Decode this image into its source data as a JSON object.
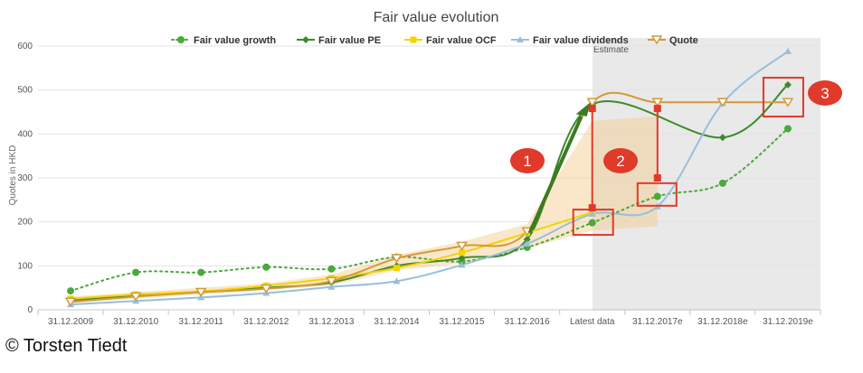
{
  "chart_data": {
    "type": "line",
    "title": "Fair value evolution",
    "ylabel": "Quotes in HKD",
    "xlabel": "",
    "ylim": [
      0,
      600
    ],
    "yticks": [
      0,
      100,
      200,
      300,
      400,
      500,
      600
    ],
    "categories": [
      "31.12.2009",
      "31.12.2010",
      "31.12.2011",
      "31.12.2012",
      "31.12.2013",
      "31.12.2014",
      "31.12.2015",
      "31.12.2016",
      "Latest data",
      "31.12.2017e",
      "31.12.2018e",
      "31.12.2019e"
    ],
    "estimate_label": "Estimate",
    "series": [
      {
        "name": "Fair value growth",
        "color": "#4aa83c",
        "style": "dotted",
        "marker": "circle",
        "values": [
          43,
          85,
          85,
          97,
          93,
          120,
          110,
          142,
          198,
          258,
          288,
          412
        ]
      },
      {
        "name": "Fair value PE",
        "color": "#3d8a2a",
        "style": "solid",
        "marker": "diamond",
        "values": [
          22,
          32,
          40,
          50,
          62,
          100,
          118,
          160,
          467,
          null,
          392,
          512
        ]
      },
      {
        "name": "Fair value OCF",
        "color": "#f2d400",
        "style": "solid",
        "marker": "square",
        "values": [
          25,
          35,
          42,
          55,
          72,
          95,
          130,
          175,
          222,
          null,
          null,
          null
        ]
      },
      {
        "name": "Fair value dividends",
        "color": "#98bedc",
        "style": "solid",
        "marker": "triangle",
        "values": [
          12,
          20,
          28,
          38,
          52,
          65,
          102,
          150,
          218,
          235,
          470,
          588
        ]
      },
      {
        "name": "Quote",
        "color": "#d39a3a",
        "style": "solid",
        "marker": "triangle-down",
        "values": [
          18,
          30,
          40,
          48,
          65,
          117,
          145,
          178,
          472,
          472,
          472,
          472
        ]
      }
    ],
    "band": {
      "lower": [
        15,
        25,
        35,
        45,
        55,
        90,
        105,
        140,
        180,
        190,
        null,
        null
      ],
      "upper": [
        30,
        40,
        50,
        60,
        80,
        125,
        155,
        195,
        430,
        440,
        null,
        null
      ]
    },
    "annotations": [
      "1",
      "2",
      "3"
    ]
  },
  "copyright": "© Torsten Tiedt"
}
